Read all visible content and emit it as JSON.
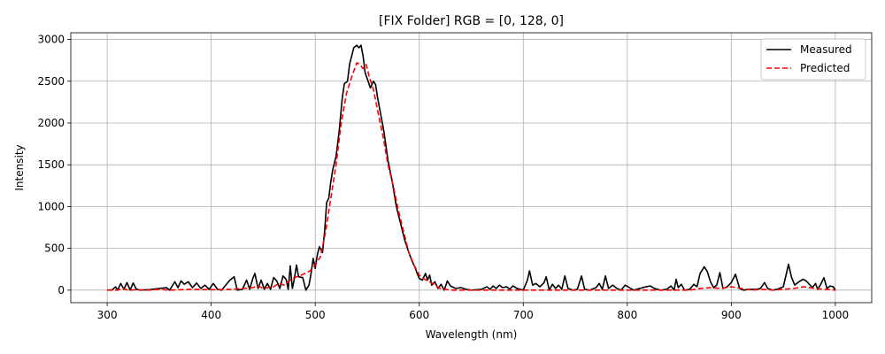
{
  "chart_data": {
    "type": "line",
    "title": "[FIX Folder] RGB = [0, 128, 0]",
    "xlabel": "Wavelength (nm)",
    "ylabel": "Intensity",
    "xlim": [
      265,
      1035
    ],
    "ylim": [
      -150,
      3080
    ],
    "xticks": [
      300,
      400,
      500,
      600,
      700,
      800,
      900,
      1000
    ],
    "yticks": [
      0,
      500,
      1000,
      1500,
      2000,
      2500,
      3000
    ],
    "grid": true,
    "legend_position": "top-right",
    "series": [
      {
        "name": "Measured",
        "color": "#000000",
        "dash": "solid",
        "points": [
          [
            300,
            0
          ],
          [
            305,
            5
          ],
          [
            308,
            40
          ],
          [
            310,
            0
          ],
          [
            313,
            80
          ],
          [
            316,
            10
          ],
          [
            319,
            90
          ],
          [
            322,
            0
          ],
          [
            325,
            85
          ],
          [
            328,
            10
          ],
          [
            332,
            0
          ],
          [
            340,
            5
          ],
          [
            350,
            20
          ],
          [
            357,
            30
          ],
          [
            360,
            0
          ],
          [
            365,
            100
          ],
          [
            368,
            30
          ],
          [
            371,
            110
          ],
          [
            374,
            70
          ],
          [
            378,
            100
          ],
          [
            382,
            30
          ],
          [
            386,
            85
          ],
          [
            390,
            20
          ],
          [
            394,
            60
          ],
          [
            398,
            10
          ],
          [
            402,
            80
          ],
          [
            406,
            10
          ],
          [
            410,
            0
          ],
          [
            414,
            60
          ],
          [
            418,
            120
          ],
          [
            422,
            160
          ],
          [
            425,
            0
          ],
          [
            430,
            10
          ],
          [
            434,
            120
          ],
          [
            437,
            10
          ],
          [
            440,
            140
          ],
          [
            442,
            200
          ],
          [
            445,
            20
          ],
          [
            448,
            120
          ],
          [
            451,
            10
          ],
          [
            454,
            80
          ],
          [
            457,
            10
          ],
          [
            460,
            150
          ],
          [
            463,
            110
          ],
          [
            466,
            20
          ],
          [
            469,
            170
          ],
          [
            472,
            130
          ],
          [
            474,
            10
          ],
          [
            476,
            290
          ],
          [
            478,
            20
          ],
          [
            480,
            140
          ],
          [
            482,
            300
          ],
          [
            484,
            160
          ],
          [
            488,
            150
          ],
          [
            491,
            0
          ],
          [
            494,
            60
          ],
          [
            496,
            200
          ],
          [
            498,
            380
          ],
          [
            500,
            260
          ],
          [
            502,
            420
          ],
          [
            504,
            520
          ],
          [
            507,
            450
          ],
          [
            509,
            700
          ],
          [
            511,
            1050
          ],
          [
            513,
            1100
          ],
          [
            515,
            1300
          ],
          [
            517,
            1450
          ],
          [
            520,
            1600
          ],
          [
            523,
            1900
          ],
          [
            526,
            2300
          ],
          [
            528,
            2470
          ],
          [
            531,
            2500
          ],
          [
            533,
            2700
          ],
          [
            535,
            2800
          ],
          [
            537,
            2900
          ],
          [
            540,
            2930
          ],
          [
            542,
            2900
          ],
          [
            544,
            2930
          ],
          [
            546,
            2800
          ],
          [
            548,
            2600
          ],
          [
            550,
            2530
          ],
          [
            553,
            2420
          ],
          [
            556,
            2500
          ],
          [
            558,
            2460
          ],
          [
            560,
            2300
          ],
          [
            563,
            2100
          ],
          [
            566,
            1900
          ],
          [
            570,
            1550
          ],
          [
            574,
            1300
          ],
          [
            578,
            1000
          ],
          [
            582,
            800
          ],
          [
            586,
            600
          ],
          [
            590,
            450
          ],
          [
            593,
            350
          ],
          [
            596,
            270
          ],
          [
            598,
            200
          ],
          [
            600,
            140
          ],
          [
            603,
            120
          ],
          [
            606,
            200
          ],
          [
            608,
            120
          ],
          [
            610,
            180
          ],
          [
            612,
            60
          ],
          [
            615,
            100
          ],
          [
            618,
            20
          ],
          [
            621,
            70
          ],
          [
            624,
            0
          ],
          [
            627,
            110
          ],
          [
            630,
            50
          ],
          [
            635,
            20
          ],
          [
            640,
            30
          ],
          [
            645,
            10
          ],
          [
            650,
            0
          ],
          [
            660,
            10
          ],
          [
            665,
            40
          ],
          [
            668,
            10
          ],
          [
            671,
            50
          ],
          [
            674,
            20
          ],
          [
            677,
            60
          ],
          [
            680,
            30
          ],
          [
            684,
            40
          ],
          [
            687,
            10
          ],
          [
            690,
            50
          ],
          [
            694,
            20
          ],
          [
            700,
            0
          ],
          [
            704,
            120
          ],
          [
            706,
            230
          ],
          [
            709,
            60
          ],
          [
            712,
            80
          ],
          [
            716,
            40
          ],
          [
            720,
            90
          ],
          [
            722,
            160
          ],
          [
            725,
            0
          ],
          [
            728,
            70
          ],
          [
            731,
            20
          ],
          [
            734,
            60
          ],
          [
            737,
            10
          ],
          [
            740,
            170
          ],
          [
            743,
            20
          ],
          [
            748,
            0
          ],
          [
            752,
            10
          ],
          [
            756,
            170
          ],
          [
            759,
            10
          ],
          [
            764,
            0
          ],
          [
            770,
            30
          ],
          [
            773,
            80
          ],
          [
            776,
            10
          ],
          [
            779,
            170
          ],
          [
            782,
            20
          ],
          [
            786,
            60
          ],
          [
            790,
            20
          ],
          [
            794,
            0
          ],
          [
            798,
            60
          ],
          [
            802,
            30
          ],
          [
            806,
            0
          ],
          [
            812,
            20
          ],
          [
            818,
            40
          ],
          [
            822,
            50
          ],
          [
            826,
            20
          ],
          [
            832,
            0
          ],
          [
            838,
            10
          ],
          [
            842,
            50
          ],
          [
            845,
            0
          ],
          [
            847,
            130
          ],
          [
            849,
            30
          ],
          [
            852,
            70
          ],
          [
            855,
            0
          ],
          [
            860,
            10
          ],
          [
            864,
            70
          ],
          [
            867,
            40
          ],
          [
            870,
            200
          ],
          [
            874,
            280
          ],
          [
            877,
            220
          ],
          [
            880,
            100
          ],
          [
            883,
            30
          ],
          [
            886,
            60
          ],
          [
            889,
            210
          ],
          [
            892,
            20
          ],
          [
            896,
            40
          ],
          [
            900,
            90
          ],
          [
            904,
            190
          ],
          [
            908,
            20
          ],
          [
            912,
            0
          ],
          [
            918,
            10
          ],
          [
            924,
            10
          ],
          [
            928,
            20
          ],
          [
            932,
            90
          ],
          [
            935,
            20
          ],
          [
            940,
            0
          ],
          [
            944,
            10
          ],
          [
            950,
            40
          ],
          [
            953,
            200
          ],
          [
            955,
            310
          ],
          [
            958,
            150
          ],
          [
            961,
            60
          ],
          [
            965,
            100
          ],
          [
            969,
            130
          ],
          [
            972,
            110
          ],
          [
            975,
            70
          ],
          [
            978,
            30
          ],
          [
            981,
            80
          ],
          [
            983,
            10
          ],
          [
            986,
            70
          ],
          [
            989,
            150
          ],
          [
            992,
            20
          ],
          [
            995,
            50
          ],
          [
            998,
            40
          ],
          [
            1000,
            0
          ]
        ]
      },
      {
        "name": "Predicted",
        "color": "#ff0000",
        "dash": "dashed",
        "points": [
          [
            300,
            0
          ],
          [
            310,
            0
          ],
          [
            315,
            20
          ],
          [
            320,
            0
          ],
          [
            330,
            5
          ],
          [
            340,
            0
          ],
          [
            350,
            10
          ],
          [
            360,
            0
          ],
          [
            380,
            10
          ],
          [
            400,
            5
          ],
          [
            420,
            10
          ],
          [
            440,
            30
          ],
          [
            445,
            50
          ],
          [
            450,
            20
          ],
          [
            460,
            40
          ],
          [
            465,
            80
          ],
          [
            470,
            60
          ],
          [
            476,
            120
          ],
          [
            480,
            150
          ],
          [
            485,
            170
          ],
          [
            490,
            200
          ],
          [
            495,
            230
          ],
          [
            500,
            300
          ],
          [
            505,
            400
          ],
          [
            510,
            700
          ],
          [
            515,
            1100
          ],
          [
            520,
            1500
          ],
          [
            525,
            2000
          ],
          [
            530,
            2350
          ],
          [
            535,
            2550
          ],
          [
            540,
            2720
          ],
          [
            543,
            2700
          ],
          [
            546,
            2650
          ],
          [
            549,
            2700
          ],
          [
            552,
            2550
          ],
          [
            556,
            2400
          ],
          [
            560,
            2150
          ],
          [
            565,
            1850
          ],
          [
            570,
            1500
          ],
          [
            575,
            1250
          ],
          [
            580,
            950
          ],
          [
            585,
            700
          ],
          [
            590,
            450
          ],
          [
            595,
            300
          ],
          [
            600,
            180
          ],
          [
            605,
            130
          ],
          [
            610,
            100
          ],
          [
            615,
            60
          ],
          [
            620,
            20
          ],
          [
            630,
            0
          ],
          [
            650,
            0
          ],
          [
            680,
            0
          ],
          [
            700,
            0
          ],
          [
            750,
            0
          ],
          [
            800,
            0
          ],
          [
            840,
            0
          ],
          [
            860,
            0
          ],
          [
            870,
            20
          ],
          [
            880,
            30
          ],
          [
            890,
            20
          ],
          [
            900,
            40
          ],
          [
            910,
            20
          ],
          [
            920,
            0
          ],
          [
            930,
            10
          ],
          [
            940,
            0
          ],
          [
            960,
            20
          ],
          [
            970,
            40
          ],
          [
            980,
            20
          ],
          [
            990,
            10
          ],
          [
            1000,
            0
          ]
        ]
      }
    ]
  }
}
